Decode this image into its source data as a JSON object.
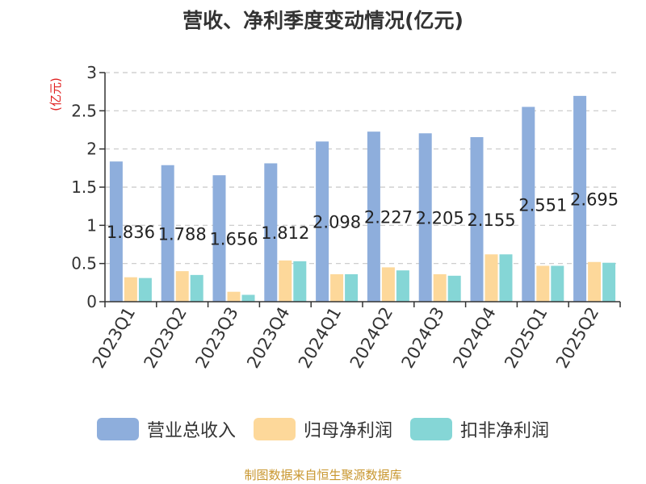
{
  "chart_data": {
    "type": "bar",
    "title": "营收、净利季度变动情况(亿元)",
    "ylabel": "(亿元)",
    "ylim": [
      0,
      3
    ],
    "yticks": [
      "0",
      "0.5",
      "1",
      "1.5",
      "2",
      "2.5",
      "3"
    ],
    "grid": true,
    "legend_position": "bottom",
    "categories": [
      "2023Q1",
      "2023Q2",
      "2023Q3",
      "2023Q4",
      "2024Q1",
      "2024Q2",
      "2024Q3",
      "2024Q4",
      "2025Q1",
      "2025Q2"
    ],
    "series": [
      {
        "name": "营业总收入",
        "color": "#8eaedc",
        "values": [
          1.836,
          1.788,
          1.656,
          1.812,
          2.098,
          2.227,
          2.205,
          2.155,
          2.551,
          2.695
        ],
        "data_labels": [
          "1.836",
          "1.788",
          "1.656",
          "1.812",
          "2.098",
          "2.227",
          "2.205",
          "2.155",
          "2.551",
          "2.695"
        ]
      },
      {
        "name": "归母净利润",
        "color": "#fdd89a",
        "values": [
          0.32,
          0.4,
          0.13,
          0.54,
          0.36,
          0.45,
          0.36,
          0.62,
          0.47,
          0.52
        ]
      },
      {
        "name": "扣非净利润",
        "color": "#85d6d6",
        "values": [
          0.31,
          0.35,
          0.09,
          0.53,
          0.36,
          0.41,
          0.34,
          0.62,
          0.47,
          0.51
        ]
      }
    ],
    "source": "制图数据来自恒生聚源数据库"
  }
}
